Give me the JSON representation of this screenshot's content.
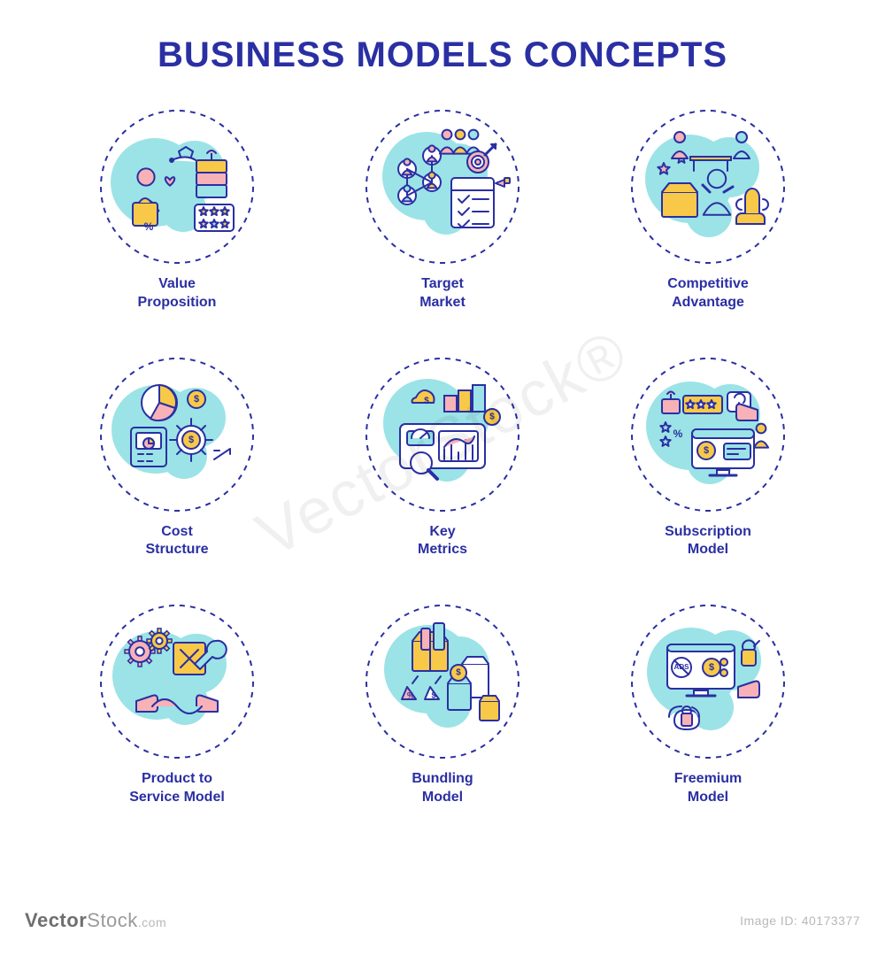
{
  "title": "BUSINESS MODELS CONCEPTS",
  "title_color": "#2a2fa3",
  "title_fontsize": 40,
  "label_color": "#2a2fa3",
  "label_fontsize": 16,
  "background_color": "#ffffff",
  "palette": {
    "stroke": "#2a2fa3",
    "aqua": "#9be3e6",
    "yellow": "#f8c948",
    "pink": "#f7b2b8",
    "white": "#ffffff"
  },
  "ring": {
    "dash": "6 6",
    "stroke_width": 2,
    "radius": 86
  },
  "grid": {
    "cols": 3,
    "rows": 3
  },
  "items": [
    {
      "label": "Value\nProposition",
      "icon": "value-proposition-icon"
    },
    {
      "label": "Target\nMarket",
      "icon": "target-market-icon"
    },
    {
      "label": "Competitive\nAdvantage",
      "icon": "competitive-advantage-icon"
    },
    {
      "label": "Cost\nStructure",
      "icon": "cost-structure-icon"
    },
    {
      "label": "Key\nMetrics",
      "icon": "key-metrics-icon"
    },
    {
      "label": "Subscription\nModel",
      "icon": "subscription-model-icon"
    },
    {
      "label": "Product to\nService Model",
      "icon": "product-to-service-icon"
    },
    {
      "label": "Bundling\nModel",
      "icon": "bundling-model-icon"
    },
    {
      "label": "Freemium\nModel",
      "icon": "freemium-model-icon"
    }
  ],
  "footer": {
    "brand_prefix": "Vector",
    "brand_suffix": "Stock",
    "brand_tld": ".com",
    "image_no_label": "Image ID: 40173377"
  },
  "watermark": "VectorStock®"
}
